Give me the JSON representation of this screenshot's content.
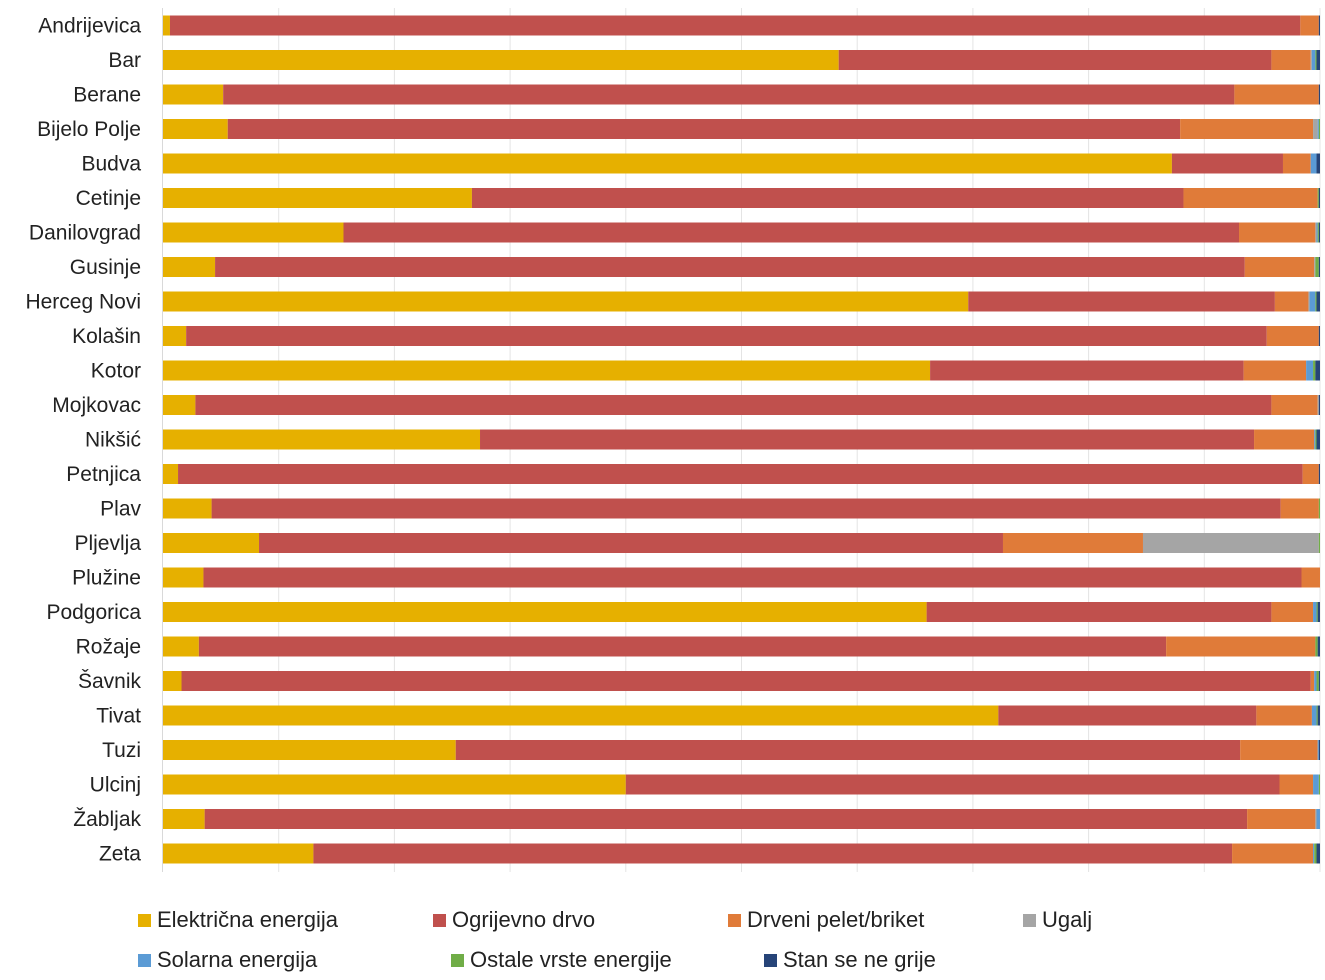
{
  "chart_data": {
    "type": "bar",
    "orientation": "horizontal",
    "stacked": "percent",
    "xlim": [
      0,
      100
    ],
    "grid": true,
    "legend_position": "bottom",
    "categories": [
      "Andrijevica",
      "Bar",
      "Berane",
      "Bijelo Polje",
      "Budva",
      "Cetinje",
      "Danilovgrad",
      "Gusinje",
      "Herceg Novi",
      "Kolašin",
      "Kotor",
      "Mojkovac",
      "Nikšić",
      "Petnjica",
      "Plav",
      "Pljevlja",
      "Plužine",
      "Podgorica",
      "Rožaje",
      "Šavnik",
      "Tivat",
      "Tuzi",
      "Ulcinj",
      "Žabljak",
      "Zeta"
    ],
    "series": [
      {
        "name": "Električna energija",
        "color": "#E6B000",
        "values": [
          0.6,
          58.4,
          5.2,
          5.6,
          87.2,
          26.7,
          15.6,
          4.5,
          69.6,
          2.0,
          66.3,
          2.8,
          27.4,
          1.3,
          4.2,
          8.3,
          3.5,
          66.0,
          3.1,
          1.6,
          72.2,
          25.3,
          40.0,
          3.6,
          13.0
        ]
      },
      {
        "name": "Ogrijevno drvo",
        "color": "#C0504D",
        "values": [
          97.7,
          37.4,
          87.4,
          82.4,
          9.6,
          61.5,
          77.4,
          89.0,
          26.5,
          93.4,
          27.1,
          93.0,
          66.9,
          97.2,
          92.4,
          64.3,
          95.0,
          29.8,
          83.6,
          97.6,
          22.3,
          67.8,
          56.5,
          90.1,
          79.4
        ]
      },
      {
        "name": "Drveni pelet/briket",
        "color": "#E07B39",
        "values": [
          1.6,
          3.4,
          7.3,
          11.5,
          2.4,
          11.6,
          6.6,
          6.0,
          2.9,
          4.5,
          5.4,
          4.0,
          5.2,
          1.4,
          3.3,
          12.1,
          1.6,
          3.6,
          12.9,
          0.3,
          4.8,
          6.7,
          2.9,
          5.9,
          7.0
        ]
      },
      {
        "name": "Ugalj",
        "color": "#A5A5A5",
        "values": [
          0.0,
          0.1,
          0.0,
          0.4,
          0.0,
          0.0,
          0.1,
          0.1,
          0.1,
          0.0,
          0.0,
          0.1,
          0.0,
          0.0,
          0.0,
          15.2,
          0.0,
          0.0,
          0.0,
          0.0,
          0.0,
          0.0,
          0.0,
          0.1,
          0.0
        ]
      },
      {
        "name": "Solarna energija",
        "color": "#5B9BD5",
        "values": [
          0.0,
          0.3,
          0.0,
          0.1,
          0.5,
          0.0,
          0.1,
          0.0,
          0.5,
          0.0,
          0.6,
          0.0,
          0.1,
          0.0,
          0.0,
          0.0,
          0.0,
          0.3,
          0.0,
          0.2,
          0.4,
          0.1,
          0.5,
          0.3,
          0.1
        ]
      },
      {
        "name": "Ostale vrste energije",
        "color": "#70AD47",
        "values": [
          0.0,
          0.1,
          0.0,
          0.1,
          0.0,
          0.1,
          0.1,
          0.3,
          0.1,
          0.0,
          0.2,
          0.0,
          0.1,
          0.0,
          0.1,
          0.1,
          0.0,
          0.1,
          0.2,
          0.2,
          0.1,
          0.0,
          0.1,
          0.0,
          0.2
        ]
      },
      {
        "name": "Stan se ne grije",
        "color": "#264478",
        "values": [
          0.1,
          0.3,
          0.1,
          0.0,
          0.3,
          0.1,
          0.1,
          0.1,
          0.3,
          0.1,
          0.4,
          0.1,
          0.3,
          0.1,
          0.0,
          0.0,
          0.0,
          0.2,
          0.2,
          0.1,
          0.2,
          0.1,
          0.0,
          0.0,
          0.3
        ]
      }
    ]
  }
}
